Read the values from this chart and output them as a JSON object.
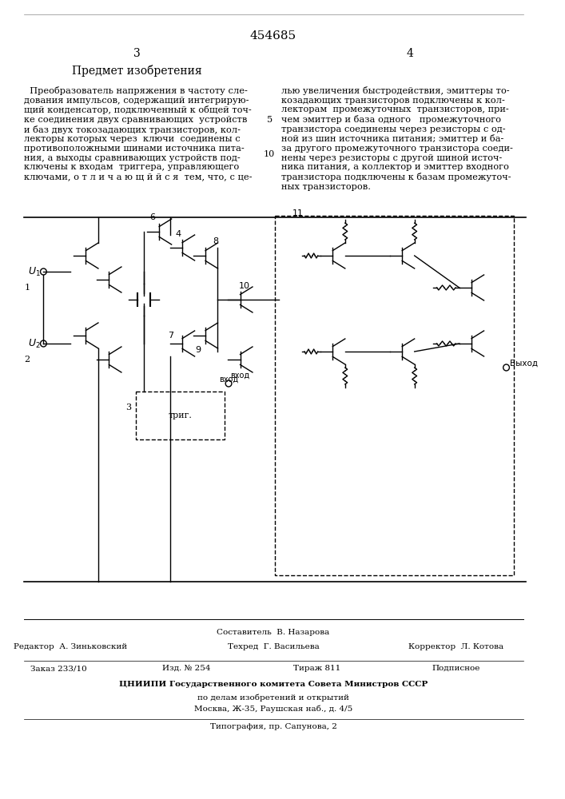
{
  "patent_number": "454685",
  "page_left": "3",
  "page_right": "4",
  "section_title": "Предмет изобретения",
  "text_left": "  Преобразователь напряжения в частоту сле-\nдования импульсов, содержащий интегрирую-\nщий конденсатор, подключенный к общей точ-\nке соединения двух сравнивающих  устройств\nи баз двух токозадающих транзисторов, кол-\nлекторы которых через  ключи  соединены с\nпротивоположными шинами источника пита-\nния, а выходы сравнивающих устройств под-\nключены к входам  триггера, управляющего\nключами, о т л и ч а ю щ й й с я  тем, что, с це-",
  "line_number_5": "5",
  "line_number_10": "10",
  "text_right": "лью увеличения быстродействия, эмиттеры то-\nкозадающих транзисторов подключены к кол-\nлекторам  промежуточных  транзисторов, при-\nчем эмиттер и база одного   промежуточного\nтранзистора соединены через резисторы с од-\nной из шин источника питания; эмиттер и ба-\nза другого промежуточного транзистора соеди-\nнены через резисторы с другой шиной источ-\nника питания, а коллектор и эмиттер входного\nтранзистора подключены к базам промежуточ-\nных транзисторов.",
  "footer_editor": "Редактор  А. Зиньковский",
  "footer_tech": "Техред  Г. Васильева",
  "footer_corrector": "Корректор  Л. Котова",
  "footer_composer": "Составитель  В. Назарова",
  "footer_order": "Заказ 233/10",
  "footer_edition": "Изд. № 254",
  "footer_circulation": "Тираж 811",
  "footer_subscription": "Подписное",
  "footer_cniip1": "ЦНИИПИ Государственного комитета Совета Министров СССР",
  "footer_cniip2": "по делам изобретений и открытий",
  "footer_cniip3": "Москва, Ж-35, Раушская наб., д. 4/5",
  "footer_print": "Типография, пр. Сапунова, 2",
  "bg_color": "#ffffff",
  "text_color": "#000000",
  "border_color": "#000000"
}
